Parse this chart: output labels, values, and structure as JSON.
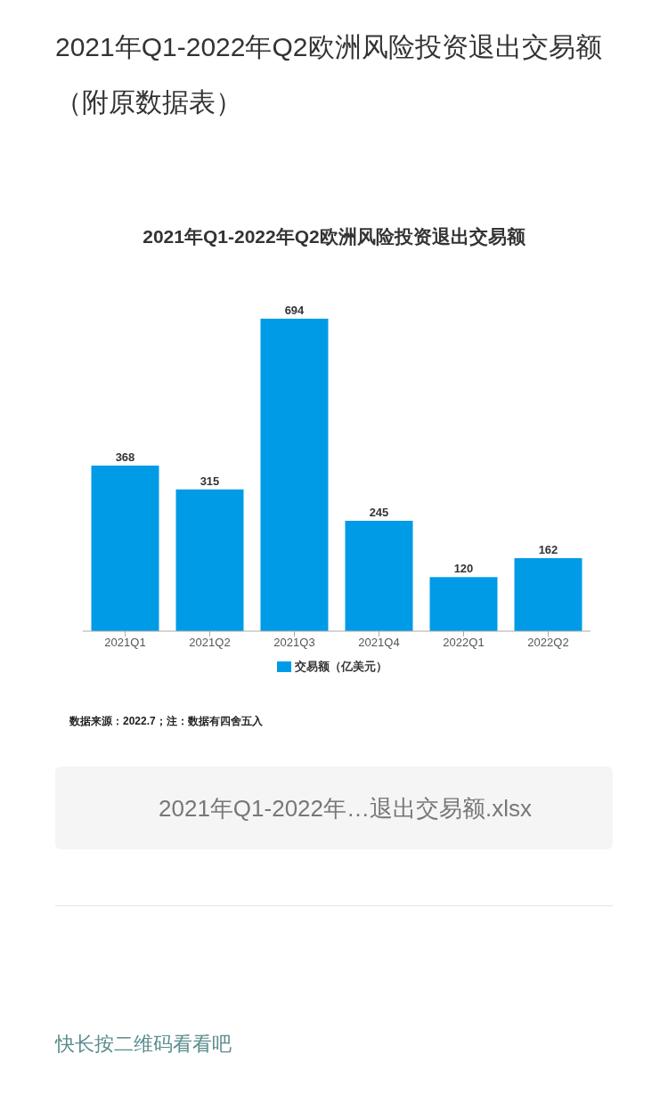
{
  "chart_data": {
    "type": "bar",
    "title": "2021年Q1-2022年Q2欧洲风险投资退出交易额（附原数据表）",
    "subtitle": "2021年Q1-2022年Q2欧洲风险投资退出交易额",
    "categories": [
      "2021Q1",
      "2021Q2",
      "2021Q3",
      "2021Q4",
      "2022Q1",
      "2022Q2"
    ],
    "series": [
      {
        "name": "交易额（亿美元）",
        "color": "#009be6",
        "values": [
          368,
          315,
          694,
          245,
          120,
          162
        ]
      }
    ],
    "data_labels": true,
    "legend": "bottom",
    "grid": false,
    "annotations": [
      "数据来源：2022.7；注：数据有四舍五入",
      "2021年Q1-2022年…退出交易额.xlsx",
      "快长按二维码看看吧"
    ]
  }
}
